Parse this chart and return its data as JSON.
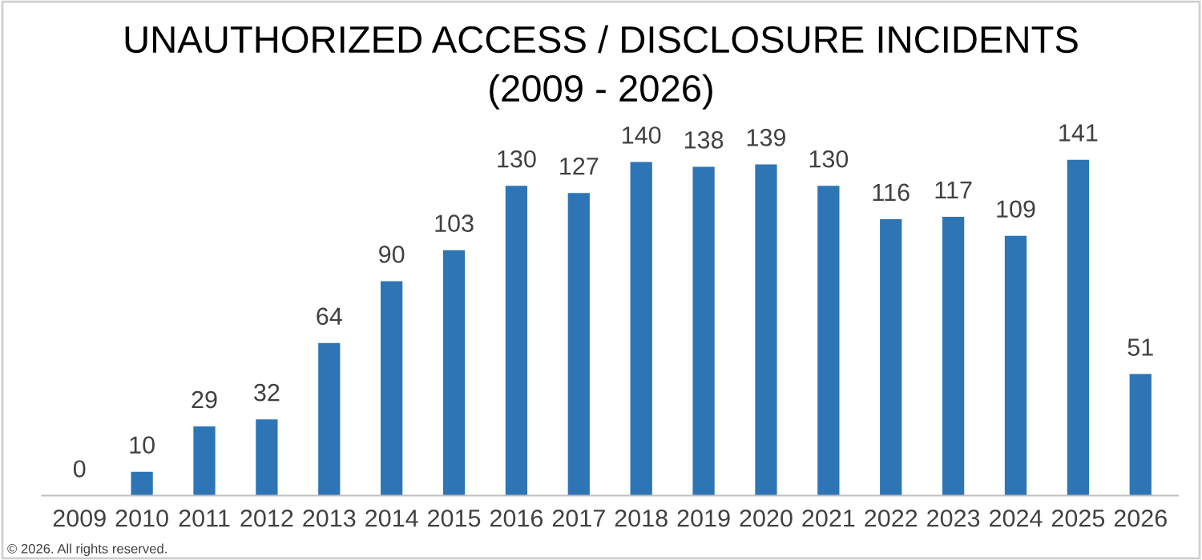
{
  "chart_data": {
    "type": "bar",
    "title": "UNAUTHORIZED ACCESS / DISCLOSURE INCIDENTS\n(2009 - 2026)",
    "categories": [
      "2009",
      "2010",
      "2011",
      "2012",
      "2013",
      "2014",
      "2015",
      "2016",
      "2017",
      "2018",
      "2019",
      "2020",
      "2021",
      "2022",
      "2023",
      "2024",
      "2025",
      "2026"
    ],
    "values": [
      0,
      10,
      29,
      32,
      64,
      90,
      103,
      130,
      127,
      140,
      138,
      139,
      130,
      116,
      117,
      109,
      141,
      51
    ],
    "color": "#2e75b6",
    "data_labels": true,
    "grid": false,
    "legend": false,
    "annotations": [
      "© 2026. All rights reserved."
    ]
  }
}
